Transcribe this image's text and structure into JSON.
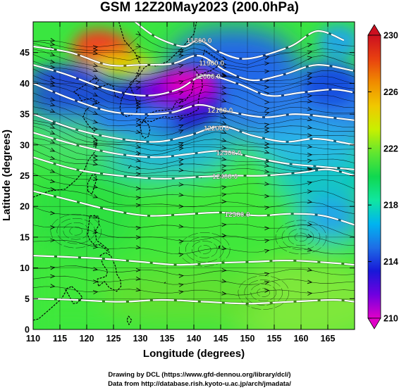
{
  "title": "GSM 12Z20May2023 (200.0hPa)",
  "xlabel": "Longitude (degrees)",
  "ylabel": "Latitude  (degrees)",
  "credits": [
    "Drawing by DCL (https://www.gfd-dennou.org/library/dcl/)",
    "Data from http://database.rish.kyoto-u.ac.jp/arch/jmadata/"
  ],
  "map": {
    "lon_range": [
      110,
      170
    ],
    "lat_range": [
      0,
      50
    ],
    "xticks": [
      110,
      115,
      120,
      125,
      130,
      135,
      140,
      145,
      150,
      155,
      160,
      165
    ],
    "yticks": [
      0,
      5,
      10,
      15,
      20,
      25,
      30,
      35,
      40,
      45
    ],
    "fields": [
      "temperature shading (K)",
      "geopotential height contours (m)",
      "wind streamlines"
    ]
  },
  "colorbar": {
    "range": [
      210,
      230
    ],
    "ticks": [
      210,
      214,
      218,
      222,
      226,
      230
    ],
    "colors": [
      "#e000c8",
      "#7000e0",
      "#1818d8",
      "#1e6ee6",
      "#00b4f0",
      "#10e6a0",
      "#10d850",
      "#60e630",
      "#c8f000",
      "#f0c800",
      "#f08c00",
      "#e84010",
      "#cc1020"
    ]
  },
  "contours": [
    {
      "label": "11800.0",
      "points": [
        [
          129,
          50
        ],
        [
          133,
          47.5
        ],
        [
          138,
          46
        ],
        [
          141,
          47
        ],
        [
          145,
          45
        ],
        [
          150,
          44
        ],
        [
          158,
          46
        ],
        [
          163,
          48.5
        ],
        [
          168,
          47
        ]
      ]
    },
    {
      "label": "11900.0",
      "points": [
        [
          110,
          46
        ],
        [
          117,
          45
        ],
        [
          124,
          43
        ],
        [
          130,
          43
        ],
        [
          136,
          43.2
        ],
        [
          141,
          44.5
        ],
        [
          146,
          42
        ],
        [
          151,
          40.5
        ],
        [
          157,
          41.5
        ],
        [
          163,
          43
        ],
        [
          170,
          42
        ]
      ]
    },
    {
      "label": "12000.0",
      "points": [
        [
          110,
          43
        ],
        [
          116,
          41.5
        ],
        [
          124,
          39
        ],
        [
          131,
          38
        ],
        [
          137,
          39
        ],
        [
          142,
          41.3
        ],
        [
          148,
          40
        ],
        [
          154,
          38
        ],
        [
          160,
          38.5
        ],
        [
          166,
          39
        ],
        [
          170,
          38.5
        ]
      ]
    },
    {
      "label": "12100.0",
      "points": [
        [
          110,
          40
        ],
        [
          117,
          37.5
        ],
        [
          124,
          35.5
        ],
        [
          130,
          35
        ],
        [
          136,
          35.3
        ],
        [
          141,
          36.5
        ],
        [
          146,
          35.5
        ],
        [
          153,
          34.5
        ],
        [
          159,
          35
        ],
        [
          165,
          34.5
        ],
        [
          170,
          34
        ]
      ]
    },
    {
      "label": "12200.0",
      "points": [
        [
          110,
          35
        ],
        [
          118,
          32.5
        ],
        [
          126,
          31
        ],
        [
          133,
          30.5
        ],
        [
          139,
          31.5
        ],
        [
          145,
          33
        ],
        [
          151,
          31.5
        ],
        [
          157,
          30.5
        ],
        [
          163,
          31
        ],
        [
          170,
          30
        ]
      ]
    },
    {
      "label": "12300.0",
      "points": [
        [
          110,
          32
        ],
        [
          118,
          30
        ],
        [
          126,
          28.5
        ],
        [
          133,
          28
        ],
        [
          139,
          28.5
        ],
        [
          145,
          29
        ],
        [
          151,
          28
        ],
        [
          157,
          27
        ],
        [
          163,
          26.5
        ],
        [
          170,
          26
        ]
      ]
    },
    {
      "label": "12400.0",
      "points": [
        [
          110,
          28
        ],
        [
          118,
          26
        ],
        [
          126,
          25
        ],
        [
          134,
          24.5
        ],
        [
          141,
          24.8
        ],
        [
          147,
          25
        ],
        [
          153,
          25
        ],
        [
          160,
          25.5
        ],
        [
          165,
          26
        ],
        [
          170,
          25
        ]
      ]
    },
    {
      "label": "12500.0",
      "points": [
        [
          110,
          22.5
        ],
        [
          117,
          21
        ],
        [
          124,
          19.5
        ],
        [
          131,
          18.5
        ],
        [
          138,
          18.7
        ],
        [
          145,
          19
        ],
        [
          152,
          18.5
        ],
        [
          158,
          18.8
        ],
        [
          164,
          18.5
        ],
        [
          170,
          17
        ]
      ]
    },
    {
      "label": "",
      "points": [
        [
          110,
          12
        ],
        [
          116,
          11.8
        ],
        [
          123,
          11.5
        ],
        [
          130,
          11
        ],
        [
          137,
          10.5
        ],
        [
          144,
          10.8
        ],
        [
          151,
          11
        ],
        [
          158,
          11.2
        ],
        [
          166,
          10.8
        ],
        [
          170,
          10.5
        ]
      ]
    },
    {
      "label": "",
      "points": [
        [
          110,
          5
        ],
        [
          118,
          4.8
        ],
        [
          126,
          4.5
        ],
        [
          134,
          4.8
        ],
        [
          142,
          4.5
        ],
        [
          150,
          4.2
        ],
        [
          158,
          4.5
        ],
        [
          166,
          4.8
        ],
        [
          170,
          4.5
        ]
      ]
    }
  ],
  "coastlines": [
    [
      [
        126,
        50
      ],
      [
        127,
        47
      ],
      [
        129,
        45
      ],
      [
        130,
        43
      ],
      [
        129.5,
        41.5
      ],
      [
        128.5,
        40
      ],
      [
        127.5,
        39
      ],
      [
        126.5,
        37.5
      ],
      [
        126.2,
        36
      ],
      [
        126.5,
        35
      ],
      [
        127.5,
        34.6
      ],
      [
        129.3,
        35.2
      ],
      [
        129.5,
        36.5
      ],
      [
        129,
        38
      ],
      [
        128.5,
        38.6
      ],
      [
        128,
        40
      ],
      [
        129.5,
        41
      ],
      [
        130.7,
        42.5
      ],
      [
        131.5,
        43
      ],
      [
        133,
        42.8
      ],
      [
        135,
        43.5
      ],
      [
        137.5,
        45.5
      ],
      [
        140,
        48
      ],
      [
        140.5,
        50
      ]
    ],
    [
      [
        130.2,
        33.5
      ],
      [
        131,
        33.9
      ],
      [
        132.2,
        33.8
      ],
      [
        133,
        34.2
      ],
      [
        134.5,
        34.6
      ],
      [
        135.5,
        34.4
      ],
      [
        136.8,
        34.6
      ],
      [
        137.5,
        34.7
      ],
      [
        138.7,
        34.8
      ],
      [
        139.8,
        35.3
      ],
      [
        140.8,
        35.7
      ],
      [
        140.8,
        36.8
      ],
      [
        141,
        38
      ],
      [
        141.6,
        39.5
      ],
      [
        141.5,
        40.6
      ],
      [
        140.6,
        41.2
      ],
      [
        140,
        40.5
      ],
      [
        139.8,
        39.5
      ],
      [
        139.6,
        38.5
      ],
      [
        139,
        37.9
      ],
      [
        138.5,
        37.3
      ],
      [
        137.3,
        36.8
      ],
      [
        136.7,
        37
      ],
      [
        136,
        35.8
      ],
      [
        135,
        35.7
      ],
      [
        133,
        35.5
      ],
      [
        132,
        35.2
      ],
      [
        131,
        34.4
      ],
      [
        130.2,
        33.5
      ]
    ],
    [
      [
        130,
        33
      ],
      [
        130.3,
        31.5
      ],
      [
        130.8,
        31.1
      ],
      [
        131.5,
        31.4
      ],
      [
        131.8,
        32.5
      ],
      [
        131.5,
        33.3
      ],
      [
        130.7,
        33.9
      ],
      [
        130,
        33.8
      ],
      [
        130,
        33
      ]
    ],
    [
      [
        140,
        42.3
      ],
      [
        141,
        41.4
      ],
      [
        143,
        42
      ],
      [
        145.5,
        43.3
      ],
      [
        144,
        44.2
      ],
      [
        142,
        45.4
      ],
      [
        141.6,
        44
      ],
      [
        141.3,
        43
      ],
      [
        140,
        42.3
      ]
    ],
    [
      [
        110,
        21.5
      ],
      [
        113,
        22.5
      ],
      [
        116,
        22.8
      ],
      [
        118,
        24.3
      ],
      [
        119.6,
        26
      ],
      [
        120.3,
        27.5
      ],
      [
        121.6,
        29
      ],
      [
        121.9,
        30.8
      ],
      [
        121,
        31.5
      ],
      [
        121.5,
        32.3
      ],
      [
        120.5,
        33
      ],
      [
        119.3,
        34.5
      ],
      [
        119.8,
        35.6
      ],
      [
        120.7,
        36.3
      ],
      [
        122.3,
        36.9
      ],
      [
        121,
        37.6
      ],
      [
        119,
        37.2
      ],
      [
        118.5,
        38
      ],
      [
        117.6,
        38.6
      ],
      [
        118.3,
        39
      ],
      [
        120,
        39.9
      ],
      [
        121.4,
        40.8
      ],
      [
        122.2,
        40.5
      ],
      [
        121.3,
        39.5
      ],
      [
        122.2,
        39.3
      ],
      [
        124,
        39.9
      ],
      [
        125,
        39.5
      ],
      [
        125.3,
        38
      ],
      [
        126,
        37.7
      ]
    ],
    [
      [
        120.2,
        22.5
      ],
      [
        121,
        22
      ],
      [
        121.8,
        24.3
      ],
      [
        121.7,
        25.2
      ],
      [
        121,
        25.1
      ],
      [
        120.2,
        23.8
      ],
      [
        120.2,
        22.5
      ]
    ],
    [
      [
        120.6,
        18.5
      ],
      [
        122.2,
        18.4
      ],
      [
        122.3,
        17
      ],
      [
        121.6,
        16
      ],
      [
        121.8,
        14.5
      ],
      [
        122.6,
        14
      ],
      [
        124,
        13
      ],
      [
        124.2,
        12.5
      ],
      [
        123.3,
        13.2
      ],
      [
        122.3,
        13.8
      ],
      [
        121.5,
        13.7
      ],
      [
        120.6,
        14.5
      ],
      [
        120.1,
        15.5
      ],
      [
        120.3,
        16.5
      ],
      [
        120.6,
        18.5
      ]
    ],
    [
      [
        122.5,
        12
      ],
      [
        123.5,
        12.5
      ],
      [
        124.5,
        12
      ],
      [
        125,
        11
      ],
      [
        125.4,
        10.2
      ],
      [
        125.6,
        9
      ],
      [
        126.3,
        8
      ],
      [
        126.4,
        7
      ],
      [
        125.6,
        6.2
      ],
      [
        124.2,
        6.8
      ],
      [
        123.3,
        7.8
      ],
      [
        122.2,
        7
      ],
      [
        122,
        8.2
      ],
      [
        123.6,
        8.6
      ],
      [
        123.9,
        9.5
      ],
      [
        123,
        10.6
      ],
      [
        122.5,
        12
      ]
    ],
    [
      [
        117.2,
        7
      ],
      [
        118.5,
        6
      ],
      [
        119.2,
        5.2
      ],
      [
        118.2,
        4.3
      ],
      [
        117.5,
        4.2
      ],
      [
        116.5,
        5.8
      ],
      [
        116,
        6.5
      ],
      [
        117.2,
        7
      ]
    ],
    [
      [
        110,
        1.5
      ],
      [
        111,
        1.7
      ],
      [
        113,
        3.2
      ],
      [
        115.3,
        5
      ],
      [
        116.5,
        6.8
      ]
    ],
    [
      [
        131,
        -1
      ],
      [
        133,
        -0.6
      ],
      [
        135,
        -1.8
      ],
      [
        137,
        -1.3
      ],
      [
        140,
        -2.2
      ]
    ],
    [
      [
        127.8,
        2.2
      ],
      [
        128.4,
        1.5
      ],
      [
        127.9,
        0.8
      ],
      [
        127.5,
        1.5
      ],
      [
        127.8,
        2.2
      ]
    ],
    [
      [
        141.3,
        24.8
      ],
      [
        141.4,
        24.6
      ]
    ],
    [
      [
        144.6,
        13.4
      ],
      [
        144.9,
        13.6
      ],
      [
        144.7,
        13.2
      ],
      [
        144.6,
        13.4
      ]
    ],
    [
      [
        145.5,
        15
      ],
      [
        145.8,
        15.3
      ]
    ],
    [
      [
        134.5,
        7.5
      ],
      [
        134.7,
        7.7
      ]
    ],
    [
      [
        127.8,
        26.2
      ],
      [
        128.3,
        26.7
      ]
    ],
    [
      [
        129.5,
        28.2
      ],
      [
        129.8,
        28.5
      ]
    ]
  ]
}
